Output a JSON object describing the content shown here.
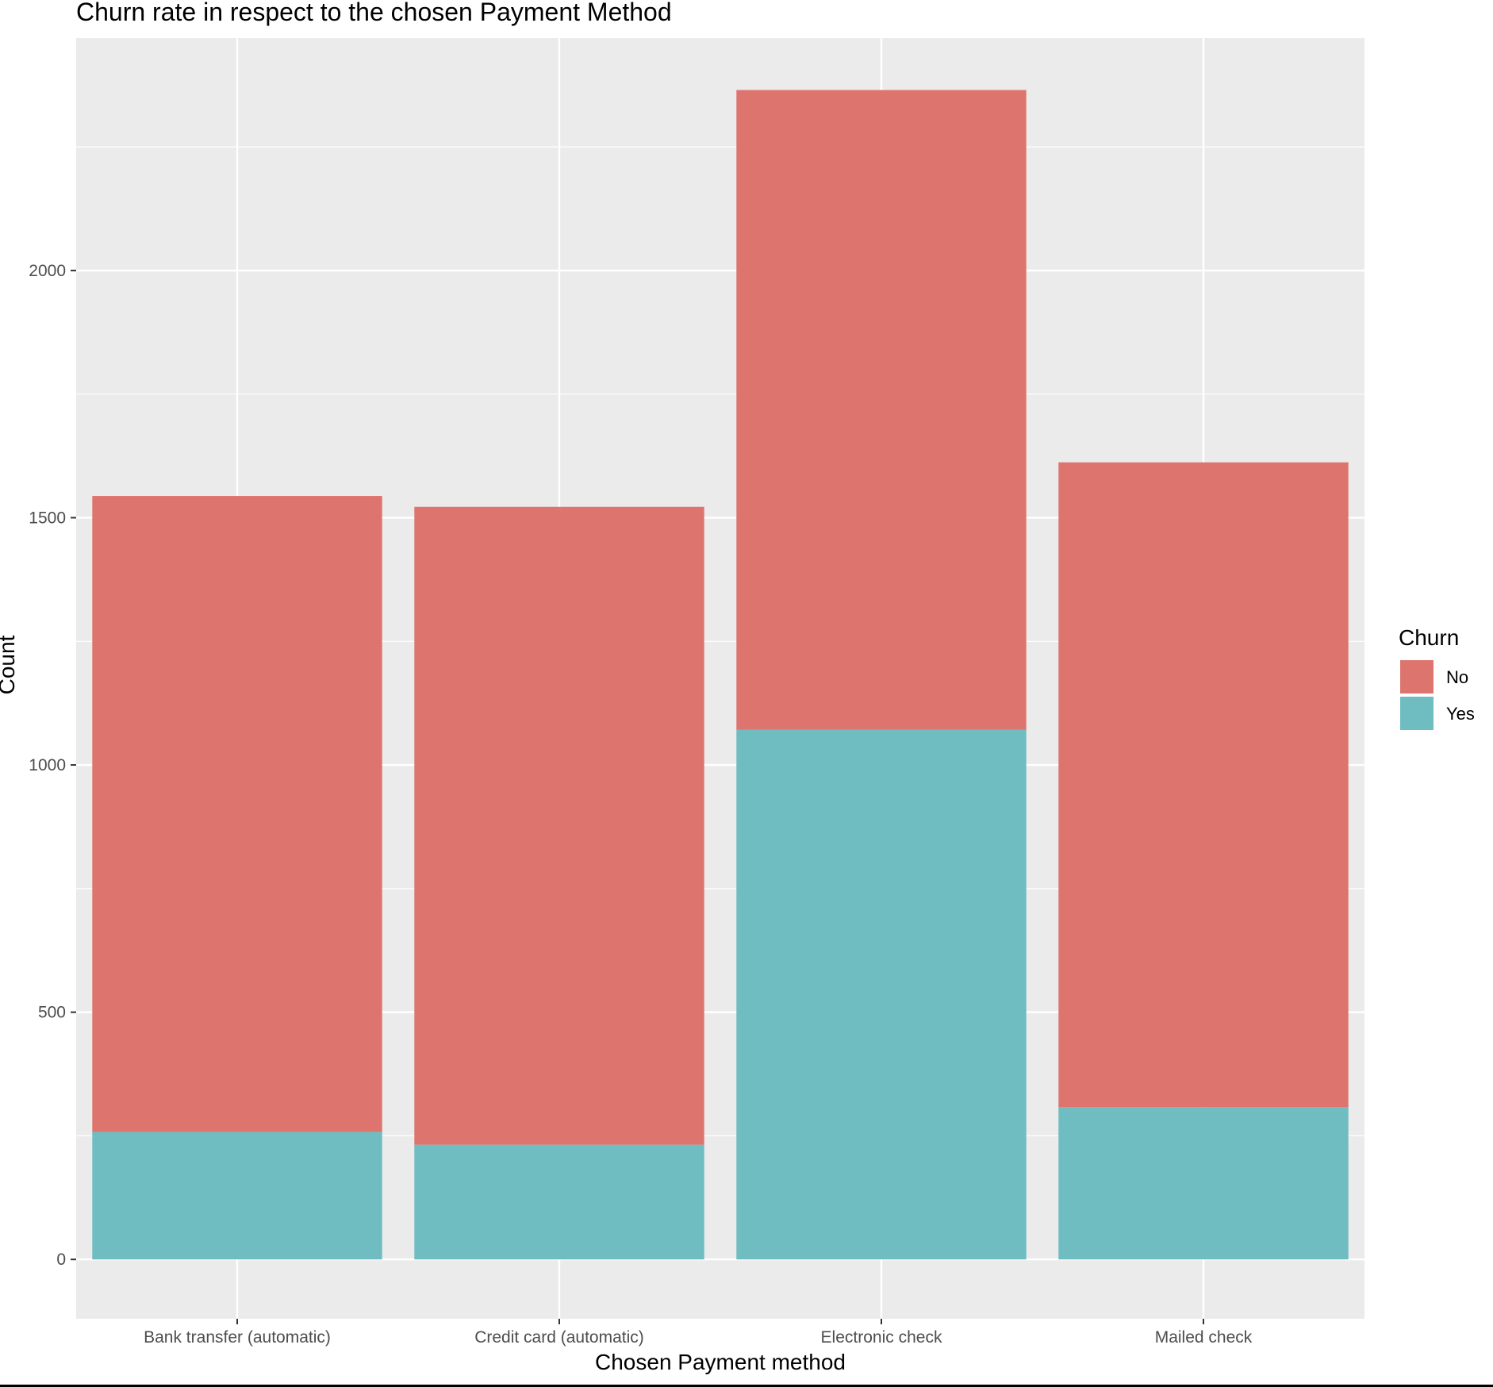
{
  "chart_data": {
    "type": "bar",
    "stacked": true,
    "title": "Churn rate in respect to the chosen Payment Method",
    "xlabel": "Chosen Payment method",
    "ylabel": "Count",
    "categories": [
      "Bank transfer (automatic)",
      "Credit card (automatic)",
      "Electronic check",
      "Mailed check"
    ],
    "series": [
      {
        "name": "Yes",
        "color": "#6fbcc1",
        "values": [
          258,
          232,
          1071,
          308
        ]
      },
      {
        "name": "No",
        "color": "#dd746e",
        "values": [
          1286,
          1290,
          1294,
          1304
        ]
      }
    ],
    "ylim": [
      -120,
      2470
    ],
    "yticks": [
      0,
      500,
      1000,
      1500,
      2000
    ],
    "ytick_labels": [
      "0",
      "500",
      "1000",
      "1500",
      "2000"
    ],
    "grid": true,
    "panel_background": "#ebebeb",
    "grid_color": "#ffffff",
    "legend": {
      "title": "Churn",
      "position": "right",
      "entries": [
        {
          "label": "No",
          "color": "#dd746e"
        },
        {
          "label": "Yes",
          "color": "#6fbcc1"
        }
      ]
    }
  }
}
